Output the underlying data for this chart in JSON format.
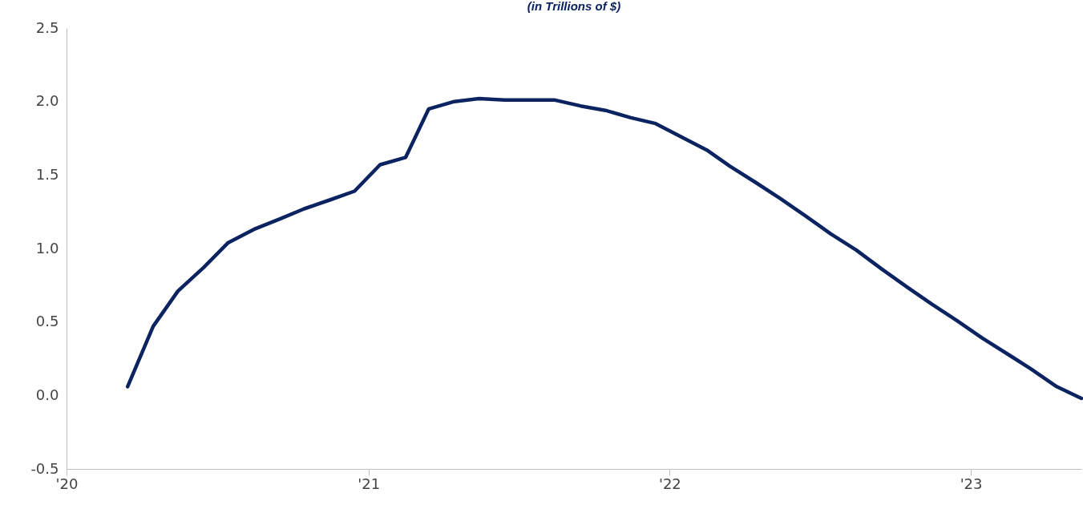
{
  "chart_data": {
    "type": "line",
    "subtitle": "(in Trillions of $)",
    "x": [
      "2020-03-15",
      "2020-04-15",
      "2020-05-15",
      "2020-06-15",
      "2020-07-15",
      "2020-08-15",
      "2020-09-15",
      "2020-10-15",
      "2020-11-15",
      "2020-12-15",
      "2021-01-15",
      "2021-02-15",
      "2021-03-15",
      "2021-04-15",
      "2021-05-15",
      "2021-06-15",
      "2021-07-15",
      "2021-08-15",
      "2021-09-15",
      "2021-10-15",
      "2021-11-15",
      "2021-12-15",
      "2022-01-15",
      "2022-02-15",
      "2022-03-15",
      "2022-04-15",
      "2022-05-15",
      "2022-06-15",
      "2022-07-15",
      "2022-08-15",
      "2022-09-15",
      "2022-10-15",
      "2022-11-15",
      "2022-12-15",
      "2023-01-15",
      "2023-02-15",
      "2023-03-15",
      "2023-04-15",
      "2023-05-15"
    ],
    "series": [
      {
        "color": "#0b2461",
        "values": [
          0.06,
          0.47,
          0.71,
          0.87,
          1.04,
          1.13,
          1.2,
          1.27,
          1.33,
          1.39,
          1.57,
          1.62,
          1.95,
          2.0,
          2.02,
          2.01,
          2.01,
          2.01,
          1.97,
          1.94,
          1.89,
          1.85,
          1.76,
          1.67,
          1.56,
          1.45,
          1.34,
          1.22,
          1.1,
          0.99,
          0.86,
          0.74,
          0.62,
          0.51,
          0.39,
          0.28,
          0.18,
          0.06,
          -0.02
        ]
      }
    ],
    "xlim": [
      "2020-01-01",
      "2023-05-15"
    ],
    "xticks": [
      {
        "value": "2020-01-01",
        "label": "'20"
      },
      {
        "value": "2021-01-01",
        "label": "'21"
      },
      {
        "value": "2022-01-01",
        "label": "'22"
      },
      {
        "value": "2023-01-01",
        "label": "'23"
      }
    ],
    "ylim": [
      -0.5,
      2.5
    ],
    "yticks": [
      -0.5,
      {
        "value": 0,
        "label": "0.0"
      },
      0.5,
      {
        "value": 1,
        "label": "1.0"
      },
      1.5,
      {
        "value": 2,
        "label": "2.0"
      },
      2.5
    ],
    "grid": false,
    "legend": false,
    "marker": "none",
    "line_style": "solid"
  }
}
